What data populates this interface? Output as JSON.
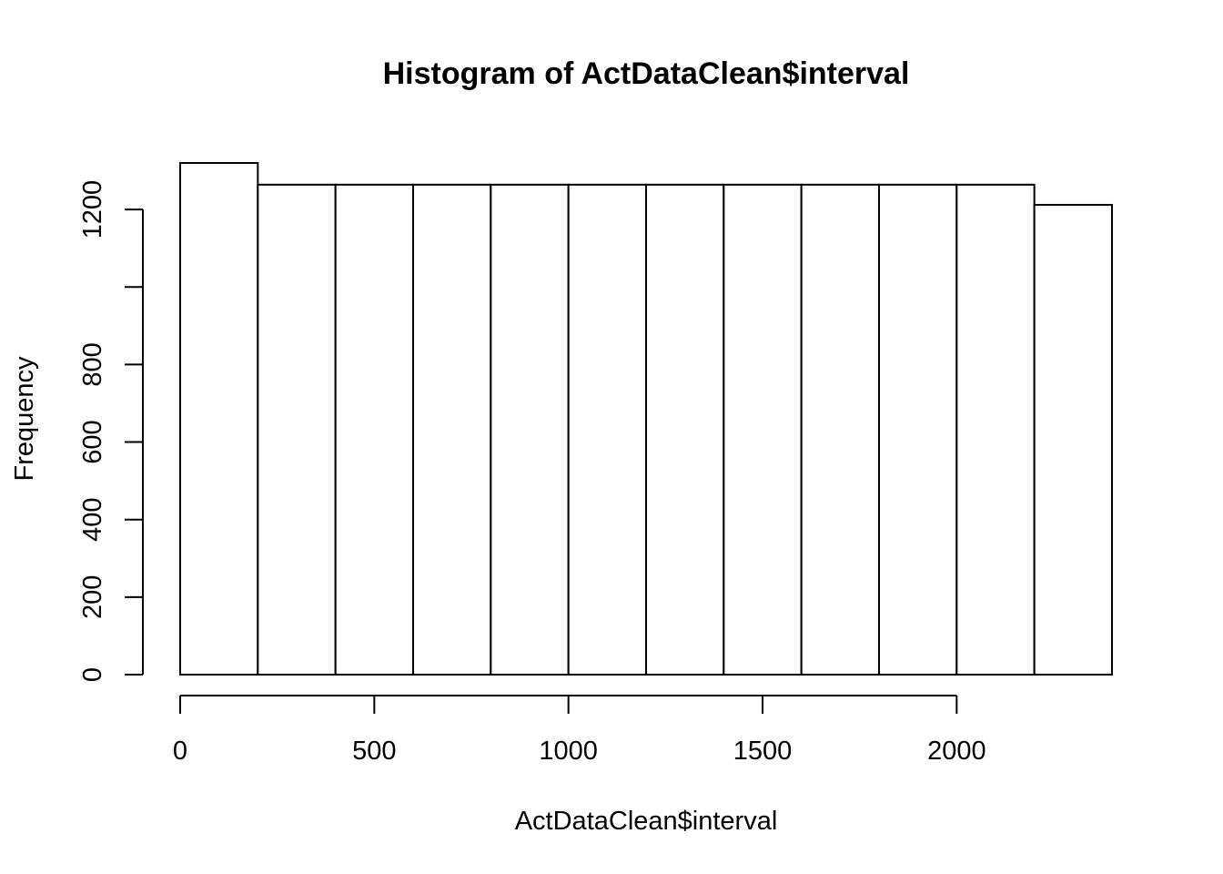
{
  "chart_data": {
    "type": "bar",
    "title": "Histogram of ActDataClean$interval",
    "xlabel": "ActDataClean$interval",
    "ylabel": "Frequency",
    "bins": [
      {
        "from": 0,
        "to": 200,
        "count": 1320
      },
      {
        "from": 200,
        "to": 400,
        "count": 1264
      },
      {
        "from": 400,
        "to": 600,
        "count": 1264
      },
      {
        "from": 600,
        "to": 800,
        "count": 1264
      },
      {
        "from": 800,
        "to": 1000,
        "count": 1264
      },
      {
        "from": 1000,
        "to": 1200,
        "count": 1264
      },
      {
        "from": 1200,
        "to": 1400,
        "count": 1264
      },
      {
        "from": 1400,
        "to": 1600,
        "count": 1264
      },
      {
        "from": 1600,
        "to": 1800,
        "count": 1264
      },
      {
        "from": 1800,
        "to": 2000,
        "count": 1264
      },
      {
        "from": 2000,
        "to": 2200,
        "count": 1264
      },
      {
        "from": 2200,
        "to": 2400,
        "count": 1212
      }
    ],
    "x_ticks": [
      0,
      500,
      1000,
      1500,
      2000
    ],
    "y_ticks": [
      0,
      200,
      400,
      600,
      800,
      1000,
      1200
    ],
    "y_tick_labels": [
      "0",
      "200",
      "400",
      "600",
      "800",
      "",
      "1200"
    ],
    "xlim": [
      0,
      2400
    ],
    "ylim": [
      0,
      1320
    ],
    "grid": false,
    "bar_color": "#ffffff",
    "edge_color": "#000000"
  }
}
